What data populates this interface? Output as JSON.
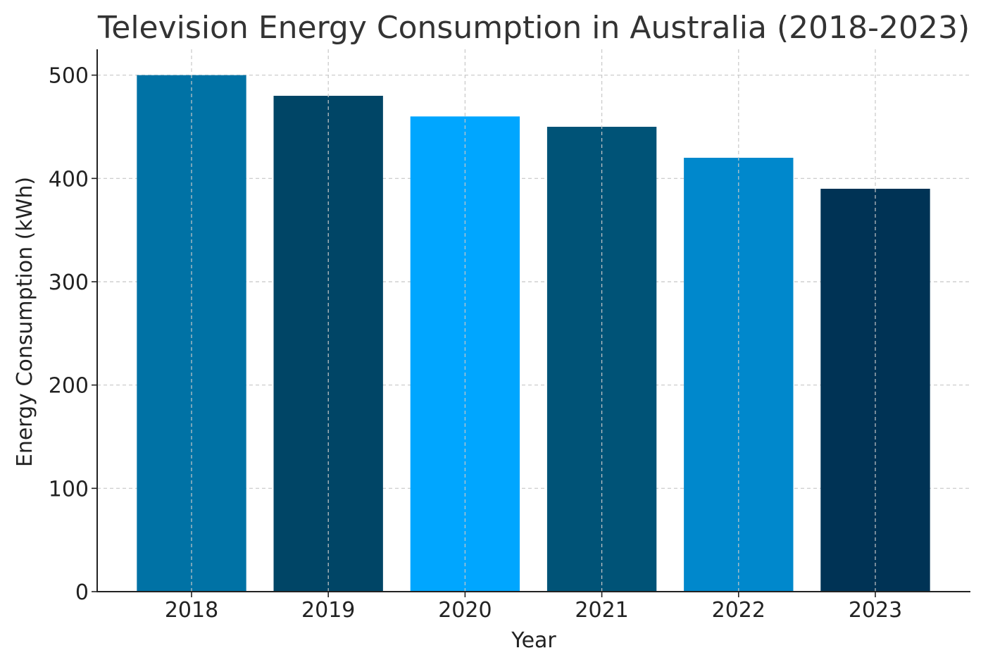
{
  "chart_data": {
    "type": "bar",
    "title": "Television Energy Consumption in Australia (2018-2023)",
    "xlabel": "Year",
    "ylabel": "Energy Consumption (kWh)",
    "categories": [
      "2018",
      "2019",
      "2020",
      "2021",
      "2022",
      "2023"
    ],
    "values": [
      500,
      480,
      460,
      450,
      420,
      390
    ],
    "bar_colors": [
      "#0072A5",
      "#004566",
      "#00A6FF",
      "#005377",
      "#0088CC",
      "#003355"
    ],
    "ylim": [
      0,
      525
    ],
    "yticks": [
      0,
      100,
      200,
      300,
      400,
      500
    ],
    "grid": true
  }
}
